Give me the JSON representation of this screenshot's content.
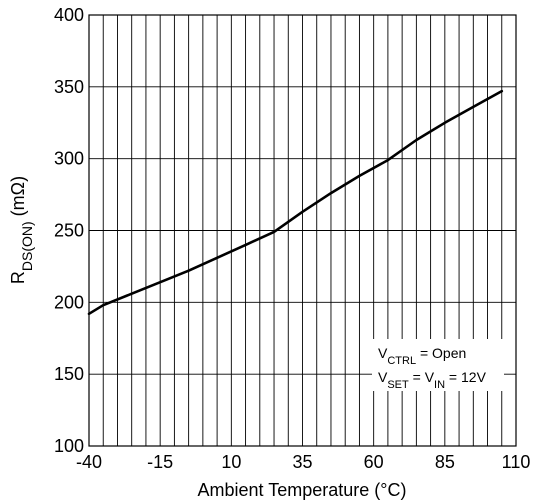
{
  "chart_data": {
    "type": "line",
    "xlabel": "Ambient Temperature (°C)",
    "ylabel": {
      "main": "R",
      "subscript": "DS(ON)",
      "suffix": " (mΩ)"
    },
    "xlim": [
      -40,
      110
    ],
    "ylim": [
      100,
      400
    ],
    "xticks": [
      -40,
      -15,
      10,
      35,
      60,
      85,
      110
    ],
    "yticks": [
      100,
      150,
      200,
      250,
      300,
      350,
      400
    ],
    "xtick_labels": [
      "-40",
      "-15",
      "10",
      "35",
      "60",
      "85",
      "110"
    ],
    "ytick_labels": [
      "100",
      "150",
      "200",
      "250",
      "300",
      "350",
      "400"
    ],
    "grid": true,
    "x_minor_grid_step": 5,
    "y_grid_step": 50,
    "annotation": {
      "line1": {
        "v": "V",
        "sub": "CTRL",
        "rest": " = Open"
      },
      "line2": {
        "v1": "V",
        "sub1": "SET",
        "eq": " = V",
        "sub2": "IN",
        "rest": " = 12V"
      }
    },
    "series": [
      {
        "x": [
          -40,
          -35,
          -25,
          -15,
          -5,
          5,
          15,
          25,
          35,
          45,
          55,
          65,
          75,
          85,
          95,
          105
        ],
        "values": [
          192,
          198,
          206,
          214,
          222,
          231,
          240,
          249,
          263,
          276,
          288,
          299,
          313,
          325,
          336,
          347
        ],
        "color": "#000000"
      }
    ]
  }
}
